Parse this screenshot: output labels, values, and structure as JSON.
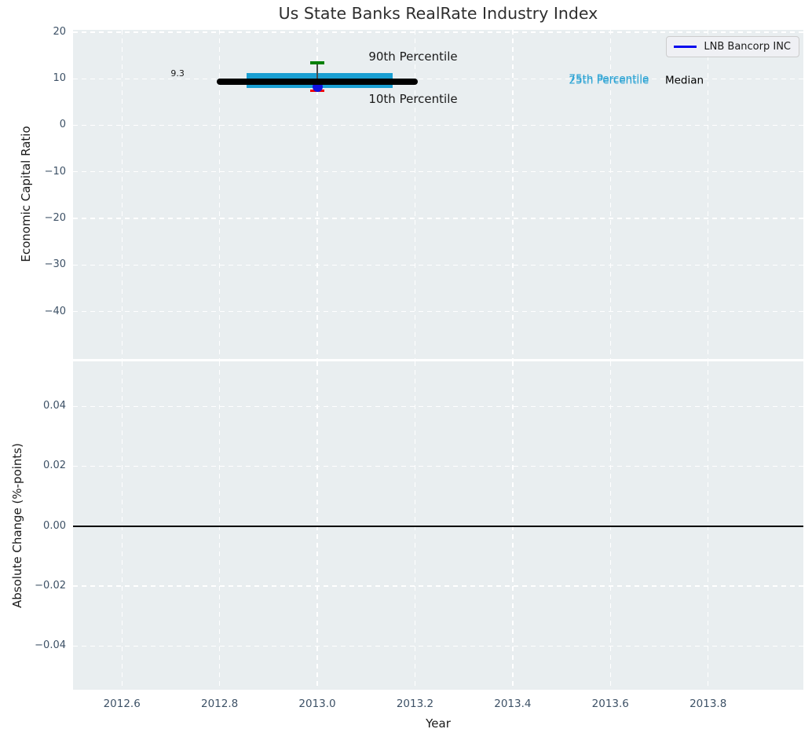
{
  "title": "Us State Banks RealRate Industry Index",
  "legend": {
    "label": "LNB Bancorp INC",
    "line_color": "#0505ee"
  },
  "colors": {
    "figure_bg": "#ffffff",
    "plot_bg": "#e9eef0",
    "grid": "#ffffff",
    "tick_label": "#3d5166",
    "axis_label": "#1a1a1a",
    "title": "#2e2e2e",
    "box_fill": "#1a9fd2",
    "median_line": "#000000",
    "p90_cap": "#008000",
    "p10_cap": "#f20000",
    "whisker": "#4a4a4a",
    "company_marker": "#1111dd",
    "percentile_label": "#2ba3d4",
    "zero_line": "#000000"
  },
  "x_axis": {
    "label": "Year",
    "tick_values": [
      2012.6,
      2012.8,
      2013.0,
      2013.2,
      2013.4,
      2013.6,
      2013.8
    ],
    "tick_labels": [
      "2012.6",
      "2012.8",
      "2013.0",
      "2013.2",
      "2013.4",
      "2013.6",
      "2013.8"
    ]
  },
  "chart_data": [
    {
      "type": "box",
      "title": "Us State Banks RealRate Industry Index",
      "xlabel": "Year",
      "ylabel": "Economic Capital Ratio",
      "xlim": [
        2012.5,
        2013.995
      ],
      "ylim": [
        -50.2,
        20.5
      ],
      "grid": "white-dashed",
      "legend_position": "upper right",
      "ytick_values": [
        20,
        10,
        0,
        -10,
        -20,
        -30,
        -40
      ],
      "ytick_labels": [
        "20",
        "10",
        "0",
        "−10",
        "−20",
        "−30",
        "−40"
      ],
      "box": {
        "x": 2013,
        "median": 9.3,
        "p75": 11.2,
        "p25": 8.0,
        "p90": 13.4,
        "p10": 7.4,
        "median_span": [
          2012.8,
          2013.2
        ],
        "box_span": [
          2012.855,
          2013.155
        ],
        "cap_half_width": 0.015
      },
      "company_point": {
        "name": "LNB Bancorp INC",
        "x": 2013,
        "value": 8.3
      },
      "annotations": [
        {
          "id": "median-value",
          "text": "9.3",
          "x": 2012.714,
          "y": 11.0,
          "size": 11,
          "color": "#1a1a1a",
          "anchor": "center"
        },
        {
          "id": "p90-label",
          "text": "90th Percentile",
          "x": 2013.105,
          "y": 14.8,
          "size": 15,
          "color": "#1a1a1a",
          "anchor": "left"
        },
        {
          "id": "p10-label",
          "text": "10th Percentile",
          "x": 2013.105,
          "y": 5.6,
          "size": 15,
          "color": "#1a1a1a",
          "anchor": "left"
        },
        {
          "id": "p75-label",
          "text": "75th Percentile",
          "x": 2013.515,
          "y": 9.8,
          "size": 13.5,
          "color": "#2ba3d4",
          "anchor": "left"
        },
        {
          "id": "p25-label",
          "text": "25th Percentile",
          "x": 2013.515,
          "y": 9.45,
          "size": 13.5,
          "color": "#2ba3d4",
          "anchor": "left"
        },
        {
          "id": "median-label",
          "text": "Median",
          "x": 2013.712,
          "y": 9.6,
          "size": 13.5,
          "color": "#000000",
          "anchor": "left"
        }
      ]
    },
    {
      "type": "line",
      "xlabel": "Year",
      "ylabel": "Absolute Change (%-points)",
      "xlim": [
        2012.5,
        2013.995
      ],
      "ylim": [
        -0.0546,
        0.055
      ],
      "grid": "white-dashed",
      "ytick_values": [
        0.04,
        0.02,
        0,
        -0.02,
        -0.04
      ],
      "ytick_labels": [
        "0.04",
        "0.02",
        "0.00",
        "−0.02",
        "−0.04"
      ],
      "zero_line": 0,
      "series": []
    }
  ]
}
